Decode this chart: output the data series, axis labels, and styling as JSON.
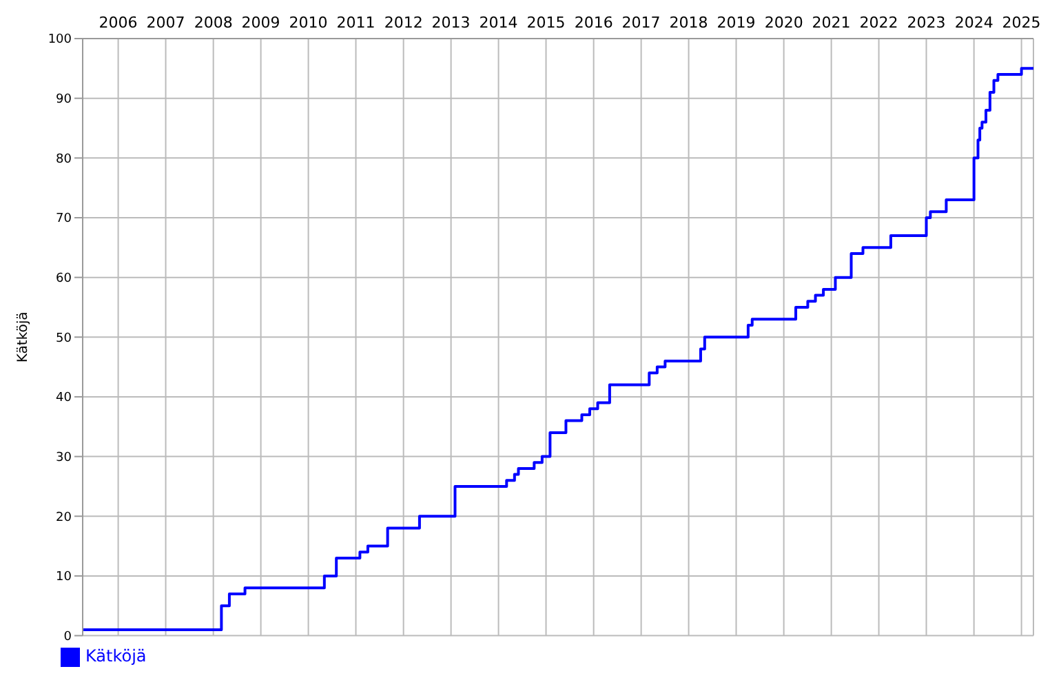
{
  "chart_data": {
    "type": "step",
    "ylabel": "Kätköjä",
    "x": [
      "2005-10",
      "2008-09",
      "2008-11",
      "2009-03",
      "2010-11",
      "2011-02",
      "2011-08",
      "2011-10",
      "2012-03",
      "2012-11",
      "2013-01",
      "2013-07",
      "2013-08",
      "2014-09",
      "2014-11",
      "2014-12",
      "2015-01",
      "2015-04",
      "2015-06",
      "2015-08",
      "2015-12",
      "2016-04",
      "2016-06",
      "2016-08",
      "2016-11",
      "2017-09",
      "2017-11",
      "2018-01",
      "2018-04",
      "2018-10",
      "2018-11",
      "2019-01",
      "2019-10",
      "2019-11",
      "2020-03",
      "2020-10",
      "2021-01",
      "2021-03",
      "2021-05",
      "2021-08",
      "2021-12",
      "2022-03",
      "2022-10",
      "2023-07",
      "2023-08",
      "2023-12",
      "2024-07",
      "2024-08-01",
      "2024-08-15",
      "2024-09",
      "2024-10",
      "2024-11",
      "2024-12",
      "2025-01",
      "2025-07",
      "2025-10"
    ],
    "series": [
      {
        "name": "Kätköjä",
        "color": "#0000ff",
        "values": [
          1,
          5,
          7,
          8,
          10,
          13,
          14,
          15,
          18,
          20,
          20,
          20,
          25,
          26,
          27,
          28,
          28,
          29,
          30,
          34,
          36,
          37,
          38,
          39,
          42,
          44,
          45,
          46,
          46,
          48,
          50,
          50,
          52,
          53,
          53,
          55,
          56,
          57,
          58,
          60,
          64,
          65,
          67,
          70,
          71,
          73,
          80,
          83,
          85,
          86,
          88,
          91,
          93,
          94,
          95,
          95
        ]
      }
    ],
    "xlim": [
      "2005-10",
      "2025-10"
    ],
    "xticks": [
      {
        "value": "2006-07",
        "label": "2006"
      },
      {
        "value": "2007-07",
        "label": "2007"
      },
      {
        "value": "2008-07",
        "label": "2008"
      },
      {
        "value": "2009-07",
        "label": "2009"
      },
      {
        "value": "2010-07",
        "label": "2010"
      },
      {
        "value": "2011-07",
        "label": "2011"
      },
      {
        "value": "2012-07",
        "label": "2012"
      },
      {
        "value": "2013-07",
        "label": "2013"
      },
      {
        "value": "2014-07",
        "label": "2014"
      },
      {
        "value": "2015-07",
        "label": "2015"
      },
      {
        "value": "2016-07",
        "label": "2016"
      },
      {
        "value": "2017-07",
        "label": "2017"
      },
      {
        "value": "2018-07",
        "label": "2018"
      },
      {
        "value": "2019-07",
        "label": "2019"
      },
      {
        "value": "2020-07",
        "label": "2020"
      },
      {
        "value": "2021-07",
        "label": "2021"
      },
      {
        "value": "2022-07",
        "label": "2022"
      },
      {
        "value": "2023-07",
        "label": "2023"
      },
      {
        "value": "2024-07",
        "label": "2024"
      },
      {
        "value": "2025-07",
        "label": "2025"
      }
    ],
    "ylim": [
      0,
      100
    ],
    "yticks": [
      0,
      10,
      20,
      30,
      40,
      50,
      60,
      70,
      80,
      90,
      100
    ],
    "grid": true,
    "legend": "bottom left",
    "marker": "none",
    "line_style": "solid"
  }
}
